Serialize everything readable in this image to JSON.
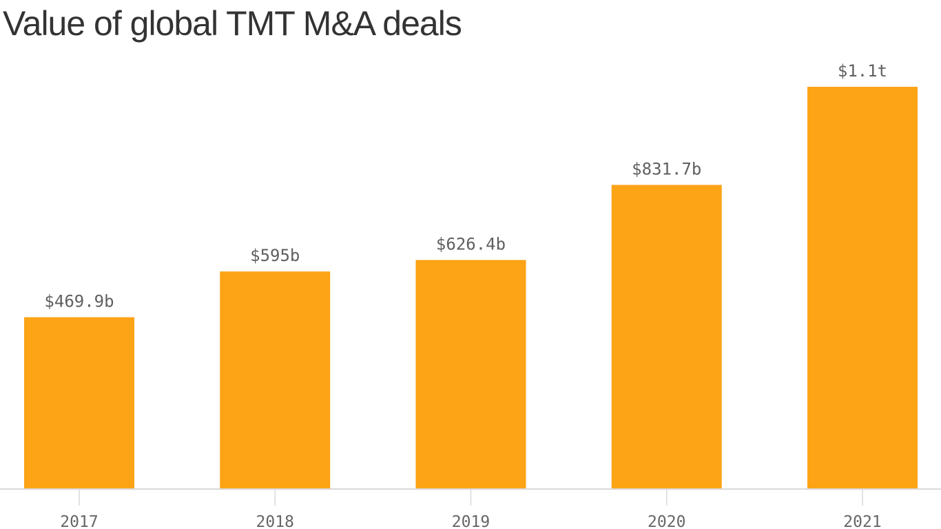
{
  "chart_data": {
    "type": "bar",
    "title": "Value of global TMT M&A deals",
    "categories": [
      "2017",
      "2018",
      "2019",
      "2020",
      "2021"
    ],
    "values": [
      469.9,
      595,
      626.4,
      831.7,
      1100
    ],
    "value_labels": [
      "$469.9b",
      "$595b",
      "$626.4b",
      "$831.7b",
      "$1.1t"
    ],
    "unit": "billion USD",
    "xlabel": "",
    "ylabel": "",
    "ylim": [
      0,
      1100
    ],
    "grid": false,
    "legend": "none",
    "colors": {
      "bar": "#FCA416",
      "label": "#5f5f5f",
      "axis": "#d9d9d9",
      "tick_label": "#666666",
      "title": "#333333"
    }
  }
}
